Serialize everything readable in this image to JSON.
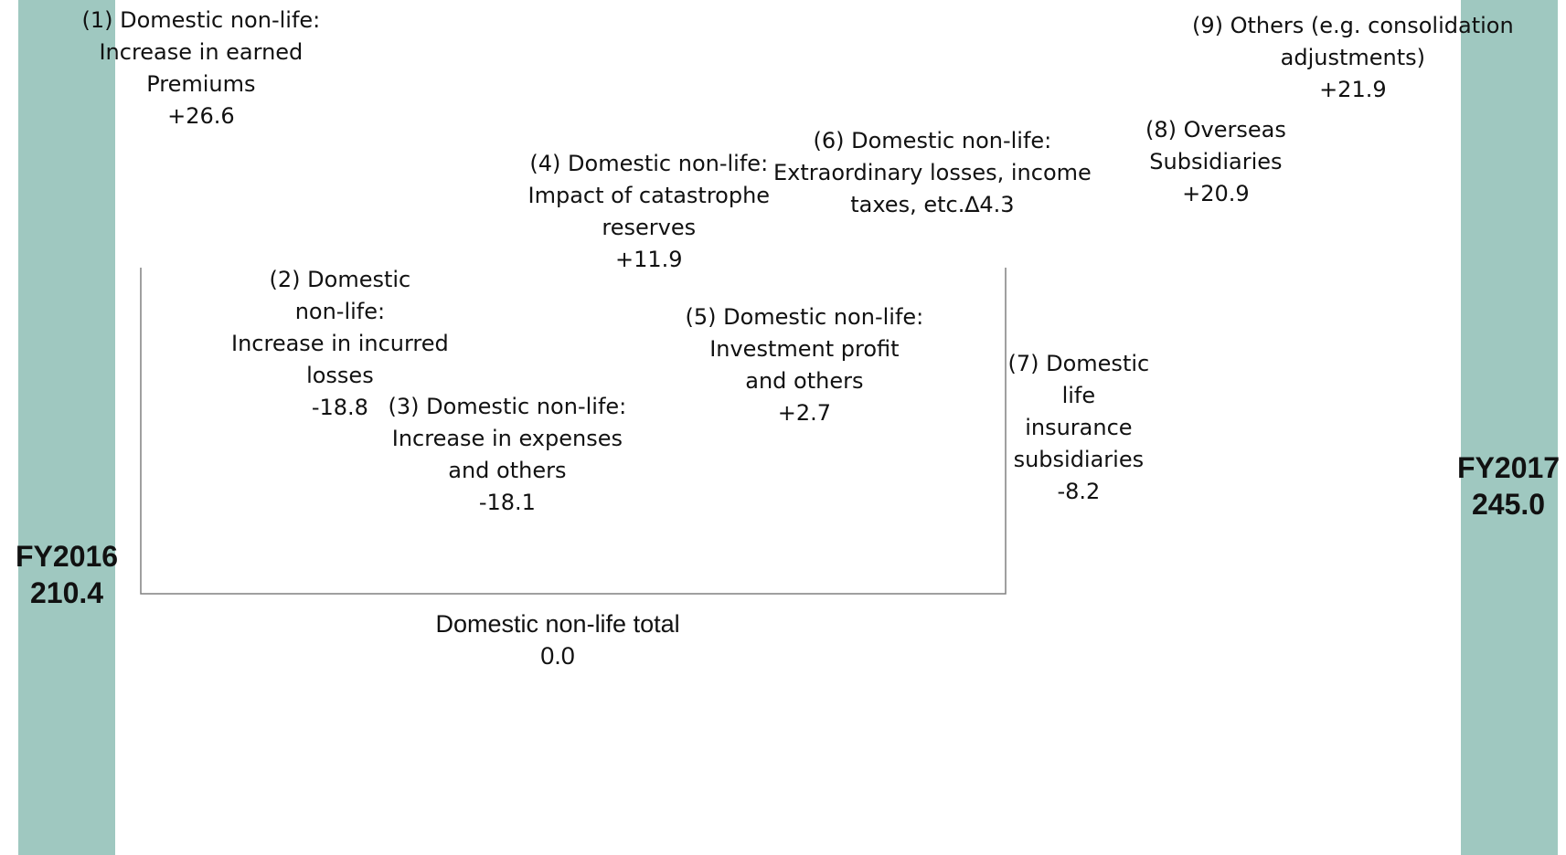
{
  "chart_data": {
    "type": "waterfall",
    "colors": {
      "total": "#9fc8c0",
      "increase": "#0070c0",
      "decrease": "#ff0000",
      "bracket": "#808080"
    },
    "start": {
      "label": "FY2016",
      "value_label": "210.4",
      "value": 210.4
    },
    "end": {
      "label": "FY2017",
      "value_label": "245.0",
      "value": 245.0
    },
    "steps": [
      {
        "id": "s1",
        "lines": [
          "(1) Domestic non-life:",
          "Increase in earned",
          "Premiums"
        ],
        "value_label": "+26.6",
        "value": 26.6
      },
      {
        "id": "s2",
        "lines": [
          "(2) Domestic",
          "non-life:",
          "Increase in incurred",
          "losses"
        ],
        "value_label": "-18.8",
        "value": -18.8
      },
      {
        "id": "s3",
        "lines": [
          "(3) Domestic non-life:",
          "Increase in expenses",
          "and others"
        ],
        "value_label": "-18.1",
        "value": -18.1
      },
      {
        "id": "s4",
        "lines": [
          "(4) Domestic non-life:",
          "Impact of catastrophe",
          "reserves"
        ],
        "value_label": "+11.9",
        "value": 11.9
      },
      {
        "id": "s5",
        "lines": [
          "(5) Domestic non-life:",
          "Investment profit",
          "and others"
        ],
        "value_label": "+2.7",
        "value": 2.7
      },
      {
        "id": "s6",
        "lines": [
          "(6) Domestic non-life:",
          "Extraordinary losses, income"
        ],
        "last_line": "taxes, etc.∆4.3",
        "value": -4.3
      },
      {
        "id": "s7",
        "lines": [
          "(7) Domestic",
          "life",
          "insurance",
          "subsidiaries"
        ],
        "value_label": "-8.2",
        "value": -8.2
      },
      {
        "id": "s8",
        "lines": [
          "(8) Overseas",
          "Subsidiaries"
        ],
        "value_label": "+20.9",
        "value": 20.9
      },
      {
        "id": "s9",
        "lines": [
          "(9) Others (e.g. consolidation",
          "adjustments)"
        ],
        "value_label": "+21.9",
        "value": 21.9
      }
    ],
    "group": {
      "lines": [
        "Domestic non-life total"
      ],
      "value_label": "0.0"
    }
  }
}
